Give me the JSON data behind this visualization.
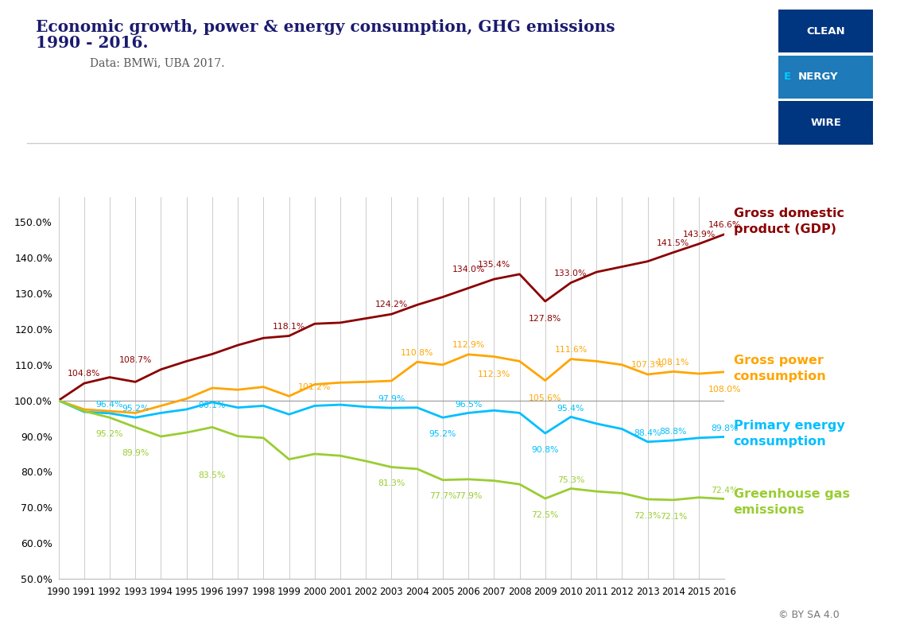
{
  "title_line1": "Economic growth, power & energy consumption, GHG emissions",
  "title_line2": "1990 - 2016.",
  "subtitle": "    Data: BMWi, UBA 2017.",
  "years": [
    1990,
    1991,
    1992,
    1993,
    1994,
    1995,
    1996,
    1997,
    1998,
    1999,
    2000,
    2001,
    2002,
    2003,
    2004,
    2005,
    2006,
    2007,
    2008,
    2009,
    2010,
    2011,
    2012,
    2013,
    2014,
    2015,
    2016
  ],
  "gdp": [
    100.0,
    104.8,
    106.5,
    105.2,
    108.7,
    111.0,
    113.0,
    115.5,
    117.5,
    118.1,
    121.5,
    121.8,
    123.0,
    124.2,
    126.8,
    129.0,
    131.5,
    134.0,
    135.4,
    127.8,
    133.0,
    136.0,
    137.5,
    139.0,
    141.5,
    143.9,
    146.6
  ],
  "power": [
    100.0,
    97.5,
    97.0,
    96.5,
    98.5,
    100.5,
    103.5,
    103.0,
    103.8,
    101.2,
    104.5,
    105.0,
    105.2,
    105.5,
    110.8,
    110.0,
    112.9,
    112.3,
    111.0,
    105.6,
    111.6,
    111.0,
    110.0,
    107.3,
    108.1,
    107.5,
    108.0
  ],
  "energy": [
    100.0,
    96.8,
    96.4,
    95.2,
    96.5,
    97.5,
    99.5,
    98.0,
    98.5,
    96.1,
    98.5,
    98.8,
    98.2,
    97.9,
    98.0,
    95.2,
    96.5,
    97.2,
    96.5,
    90.8,
    95.4,
    93.5,
    92.0,
    88.4,
    88.8,
    89.5,
    89.8
  ],
  "ghg": [
    100.0,
    97.0,
    95.2,
    92.5,
    89.9,
    91.0,
    92.5,
    90.0,
    89.5,
    83.5,
    85.0,
    84.5,
    83.0,
    81.3,
    80.8,
    77.7,
    77.9,
    77.5,
    76.5,
    72.5,
    75.3,
    74.5,
    74.0,
    72.3,
    72.1,
    72.8,
    72.4
  ],
  "gdp_color": "#8B0000",
  "power_color": "#FFA500",
  "energy_color": "#00BFFF",
  "ghg_color": "#9ACD32",
  "background_color": "#FFFFFF",
  "grid_color": "#CCCCCC",
  "ylim_min": 50.0,
  "ylim_max": 157.0,
  "yticks": [
    50.0,
    60.0,
    70.0,
    80.0,
    90.0,
    100.0,
    110.0,
    120.0,
    130.0,
    140.0,
    150.0
  ],
  "label_fontsize": 7.8,
  "line_width": 2.0
}
